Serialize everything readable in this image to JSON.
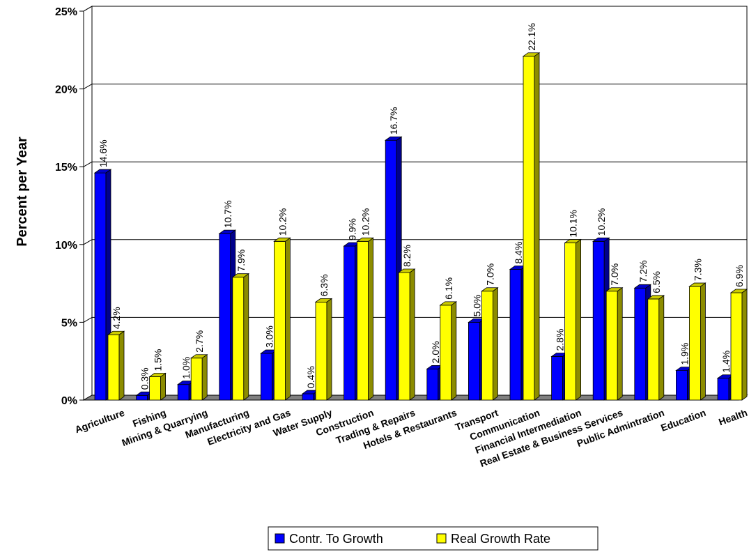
{
  "chart_data": {
    "type": "bar",
    "ylabel": "Percent per Year",
    "ylim": [
      0,
      25
    ],
    "yticks": [
      "0%",
      "5%",
      "10%",
      "15%",
      "20%",
      "25%"
    ],
    "grid": true,
    "legend_position": "bottom",
    "categories": [
      "Agriculture",
      "Fishing",
      "Mining & Quarrying",
      "Manufacturing",
      "Electricity and Gas",
      "Water Supply",
      "Construction",
      "Trading & Repairs",
      "Hotels & Restaurants",
      "Transport",
      "Communication",
      "Financial Intermediation",
      "Real Estate & Business Services",
      "Public Admintration",
      "Education",
      "Health"
    ],
    "series": [
      {
        "name": "Contr. To Growth",
        "color": "#0000ff",
        "values": [
          14.6,
          0.3,
          1.0,
          10.7,
          3.0,
          0.4,
          9.9,
          16.7,
          2.0,
          5.0,
          8.4,
          2.8,
          10.2,
          7.2,
          1.9,
          1.4
        ],
        "labels": [
          "14.6%",
          "0.3%",
          "1.0%",
          "10.7%",
          "3.0%",
          "0.4%",
          "9.9%",
          "16.7%",
          "2.0%",
          "5.0%",
          "8.4%",
          "2.8%",
          "10.2%",
          "7.2%",
          "1.9%",
          "1.4%"
        ]
      },
      {
        "name": "Real Growth Rate",
        "color": "#ffff00",
        "values": [
          4.2,
          1.5,
          2.7,
          7.9,
          10.2,
          6.3,
          10.2,
          8.2,
          6.1,
          7.0,
          22.1,
          10.1,
          7.0,
          6.5,
          7.3,
          6.9
        ],
        "labels": [
          "4.2%",
          "1.5%",
          "2.7%",
          "7.9%",
          "10.2%",
          "6.3%",
          "10.2%",
          "8.2%",
          "6.1%",
          "7.0%",
          "22.1%",
          "10.1%",
          "7.0%",
          "6.5%",
          "7.3%",
          "6.9%"
        ]
      }
    ]
  }
}
